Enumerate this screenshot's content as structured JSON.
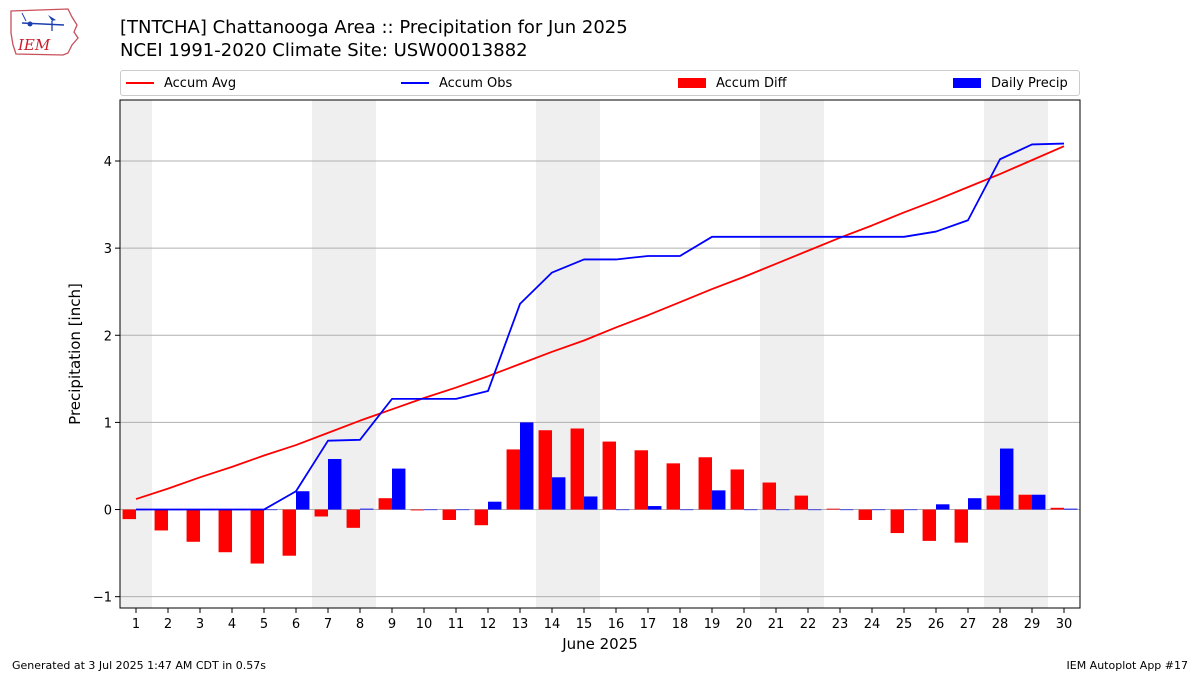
{
  "header": {
    "title_line1": "[TNTCHA] Chattanooga Area :: Precipitation for Jun 2025",
    "title_line2": "NCEI 1991-2020 Climate Site: USW00013882"
  },
  "logo": {
    "text": "IEM"
  },
  "footer": {
    "generated": "Generated at 3 Jul 2025 1:47 AM CDT in 0.57s",
    "app": "IEM Autoplot App #17"
  },
  "chart_data": {
    "type": "bar",
    "xlabel": "June 2025",
    "ylabel": "Precipitation [inch]",
    "ylim": [
      -1.13,
      4.7
    ],
    "yticks": [
      -1,
      0,
      1,
      2,
      3,
      4
    ],
    "grid": true,
    "legend_position": "top",
    "weekend_shading_days": [
      1,
      7,
      8,
      14,
      15,
      21,
      22,
      28,
      29
    ],
    "categories": [
      "1",
      "2",
      "3",
      "4",
      "5",
      "6",
      "7",
      "8",
      "9",
      "10",
      "11",
      "12",
      "13",
      "14",
      "15",
      "16",
      "17",
      "18",
      "19",
      "20",
      "21",
      "22",
      "23",
      "24",
      "25",
      "26",
      "27",
      "28",
      "29",
      "30"
    ],
    "series": [
      {
        "name": "Accum Avg",
        "kind": "line",
        "color": "#ff0000",
        "values": [
          0.12,
          0.24,
          0.37,
          0.49,
          0.62,
          0.74,
          0.88,
          1.02,
          1.15,
          1.28,
          1.4,
          1.53,
          1.67,
          1.81,
          1.94,
          2.09,
          2.23,
          2.38,
          2.53,
          2.67,
          2.82,
          2.97,
          3.12,
          3.26,
          3.41,
          3.55,
          3.7,
          3.85,
          4.01,
          4.17
        ]
      },
      {
        "name": "Accum Obs",
        "kind": "line",
        "color": "#0000ff",
        "values": [
          0.0,
          0.0,
          0.0,
          0.0,
          0.0,
          0.21,
          0.79,
          0.8,
          1.27,
          1.27,
          1.27,
          1.36,
          2.36,
          2.72,
          2.87,
          2.87,
          2.91,
          2.91,
          3.13,
          3.13,
          3.13,
          3.13,
          3.13,
          3.13,
          3.13,
          3.19,
          3.32,
          4.02,
          4.19,
          4.2
        ]
      },
      {
        "name": "Accum Diff",
        "kind": "bar",
        "color": "#ff0000",
        "values": [
          -0.11,
          -0.24,
          -0.37,
          -0.49,
          -0.62,
          -0.53,
          -0.08,
          -0.21,
          0.13,
          -0.01,
          -0.12,
          -0.18,
          0.69,
          0.91,
          0.93,
          0.78,
          0.68,
          0.53,
          0.6,
          0.46,
          0.31,
          0.16,
          0.01,
          -0.12,
          -0.27,
          -0.36,
          -0.38,
          0.16,
          0.17,
          0.02
        ]
      },
      {
        "name": "Daily Precip",
        "kind": "bar",
        "color": "#0000ff",
        "values": [
          0.0,
          0.0,
          0.0,
          0.0,
          0.0,
          0.21,
          0.58,
          0.01,
          0.47,
          0.0,
          0.0,
          0.09,
          1.0,
          0.37,
          0.15,
          0.0,
          0.04,
          0.0,
          0.22,
          0.0,
          0.0,
          0.0,
          0.0,
          0.0,
          0.0,
          0.06,
          0.13,
          0.7,
          0.17,
          0.01
        ]
      }
    ]
  }
}
